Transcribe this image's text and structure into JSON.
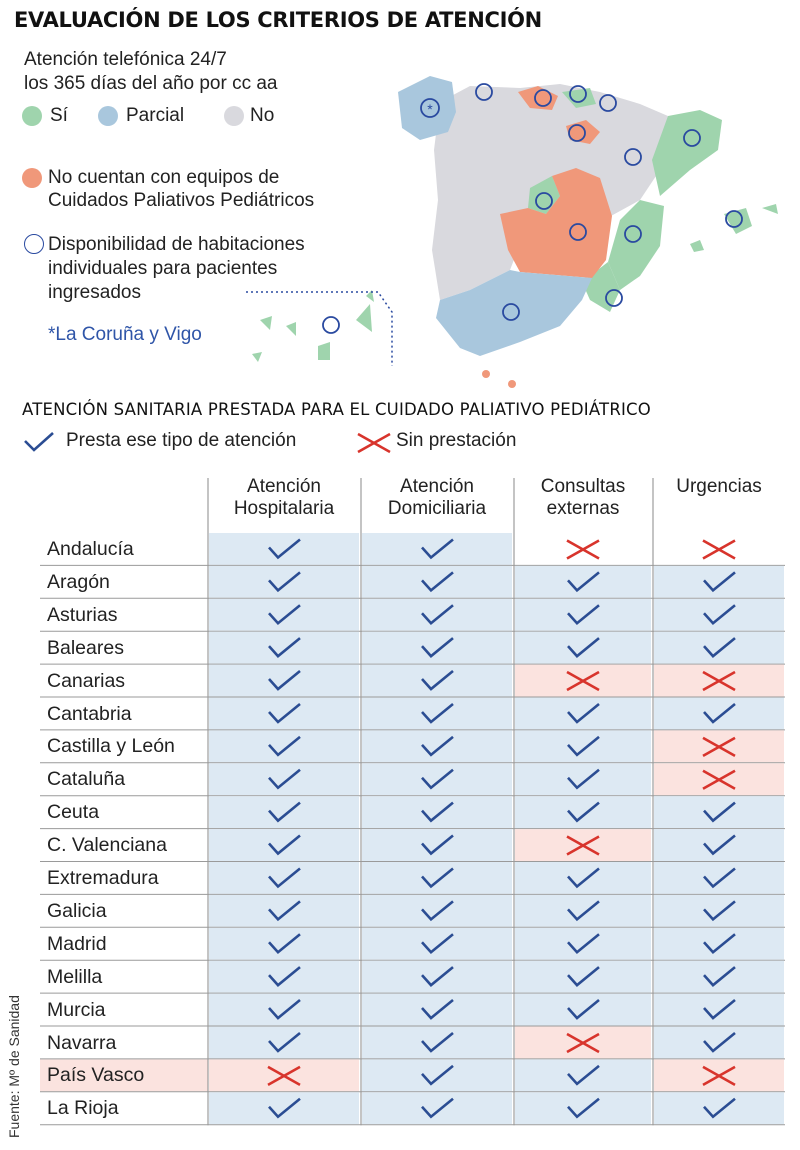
{
  "title": "EVALUACIÓN DE LOS CRITERIOS DE ATENCIÓN",
  "map_legend": {
    "line1": "Atención telefónica 24/7",
    "line2": "los 365 días del año por cc aa",
    "yes": "Sí",
    "partial": "Parcial",
    "no": "No",
    "no_teams_line1": "No cuentan con equipos de",
    "no_teams_line2": "Cuidados Paliativos Pediátricos",
    "rooms_line1": "Disponibilidad de habitaciones",
    "rooms_line2": "individuales para pacientes",
    "rooms_line3": "ingresados",
    "note": "*La Coruña y Vigo",
    "colors": {
      "yes": "#9fd4ad",
      "partial": "#a9c7dd",
      "no": "#d9d9de",
      "no_teams": "#f0987a",
      "ring": "#2a4aa0"
    }
  },
  "section_title": "ATENCIÓN SANITARIA PRESTADA PARA EL CUIDADO PALIATIVO PEDIÁTRICO",
  "key": {
    "check": "Presta ese tipo de atención",
    "cross": "Sin prestación"
  },
  "source": "Fuente: Mº de Sanidad",
  "chart_data": {
    "type": "table",
    "columns": [
      {
        "line1": "Atención",
        "line2": "Hospitalaria"
      },
      {
        "line1": "Atención",
        "line2": "Domiciliaria"
      },
      {
        "line1": "Consultas",
        "line2": "externas"
      },
      {
        "line1": "Urgencias",
        "line2": ""
      }
    ],
    "rows": [
      {
        "region": "Andalucía",
        "values": [
          true,
          true,
          false,
          false
        ]
      },
      {
        "region": "Aragón",
        "values": [
          true,
          true,
          true,
          true
        ]
      },
      {
        "region": "Asturias",
        "values": [
          true,
          true,
          true,
          true
        ]
      },
      {
        "region": "Baleares",
        "values": [
          true,
          true,
          true,
          true
        ]
      },
      {
        "region": "Canarias",
        "values": [
          true,
          true,
          false,
          false
        ]
      },
      {
        "region": "Cantabria",
        "values": [
          true,
          true,
          true,
          true
        ]
      },
      {
        "region": "Castilla y León",
        "values": [
          true,
          true,
          true,
          false
        ]
      },
      {
        "region": "Cataluña",
        "values": [
          true,
          true,
          true,
          false
        ]
      },
      {
        "region": "Ceuta",
        "values": [
          true,
          true,
          true,
          true
        ]
      },
      {
        "region": "C. Valenciana",
        "values": [
          true,
          true,
          false,
          true
        ]
      },
      {
        "region": "Extremadura",
        "values": [
          true,
          true,
          true,
          true
        ]
      },
      {
        "region": "Galicia",
        "values": [
          true,
          true,
          true,
          true
        ]
      },
      {
        "region": "Madrid",
        "values": [
          true,
          true,
          true,
          true
        ]
      },
      {
        "region": "Melilla",
        "values": [
          true,
          true,
          true,
          true
        ]
      },
      {
        "region": "Murcia",
        "values": [
          true,
          true,
          true,
          true
        ]
      },
      {
        "region": "Navarra",
        "values": [
          true,
          true,
          false,
          true
        ]
      },
      {
        "region": "País Vasco",
        "values": [
          false,
          true,
          true,
          false
        ]
      },
      {
        "region": "La Rioja",
        "values": [
          true,
          true,
          true,
          true
        ]
      }
    ],
    "colors": {
      "check_cell": "#dde9f3",
      "cross_cell": "#fbe3df",
      "check": "#2b4d93",
      "cross": "#d8342c"
    }
  }
}
